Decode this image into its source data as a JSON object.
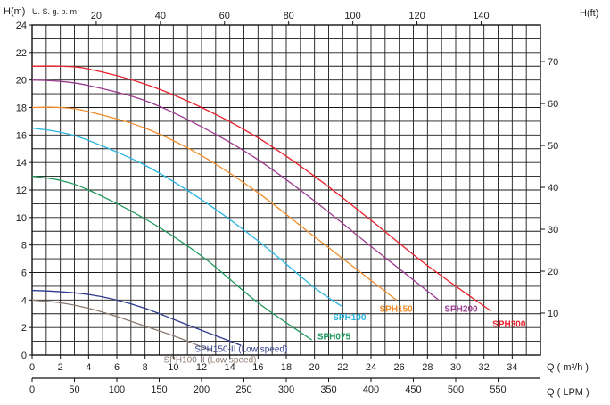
{
  "chart_data": {
    "type": "line",
    "title": "",
    "axes": {
      "left": {
        "label_main": "H(m)",
        "ticks": [
          0,
          2,
          4,
          6,
          8,
          10,
          12,
          14,
          16,
          18,
          20,
          22,
          24
        ],
        "range": [
          0,
          24
        ]
      },
      "right": {
        "label": "H(ft)",
        "ticks": [
          10,
          20,
          30,
          40,
          50,
          60,
          70
        ]
      },
      "top": {
        "label": "U. S. g. p. m",
        "ticks": [
          20,
          40,
          60,
          80,
          100,
          120,
          140
        ]
      },
      "bottom_q": {
        "label": "Q ( m³/h )",
        "ticks": [
          0,
          2,
          4,
          6,
          8,
          10,
          12,
          14,
          16,
          18,
          20,
          22,
          24,
          26,
          28,
          30,
          32,
          34
        ],
        "range": [
          0,
          36
        ]
      },
      "bottom_lpm": {
        "label": "Q ( LPM )",
        "ticks": [
          0,
          50,
          100,
          150,
          200,
          250,
          300,
          350,
          400,
          450,
          500,
          550
        ]
      }
    },
    "grid": true,
    "series": [
      {
        "name": "SPH300",
        "color": "#e8202a",
        "x": [
          0,
          2,
          4,
          8,
          12,
          16,
          20,
          24,
          28,
          32.5
        ],
        "y": [
          21.0,
          21.0,
          20.8,
          19.7,
          18.0,
          15.8,
          13.0,
          9.8,
          6.5,
          3.2
        ]
      },
      {
        "name": "SPH200",
        "color": "#9b3b8e",
        "x": [
          0,
          2,
          4,
          8,
          12,
          16,
          20,
          24,
          28.8
        ],
        "y": [
          20.0,
          19.9,
          19.6,
          18.5,
          16.6,
          14.2,
          11.2,
          7.9,
          4.0
        ]
      },
      {
        "name": "SPH150",
        "color": "#f08c2a",
        "x": [
          0,
          2,
          4,
          8,
          12,
          16,
          20,
          25.8
        ],
        "y": [
          18.0,
          18.0,
          17.7,
          16.5,
          14.5,
          11.8,
          8.6,
          4.0
        ]
      },
      {
        "name": "SPH100",
        "color": "#2ab4e0",
        "x": [
          0,
          2,
          4,
          8,
          12,
          16,
          20,
          22.0
        ],
        "y": [
          16.5,
          16.2,
          15.6,
          13.8,
          11.3,
          8.3,
          4.9,
          3.5
        ]
      },
      {
        "name": "SPH075",
        "color": "#1e9a5c",
        "x": [
          0,
          2,
          4,
          8,
          12,
          16,
          19.8
        ],
        "y": [
          13.0,
          12.7,
          12.0,
          9.9,
          7.2,
          3.8,
          1.1
        ]
      },
      {
        "name": "SPH150-II (Low speed)",
        "color": "#2d3a8c",
        "x": [
          0,
          2,
          4,
          6,
          8,
          10,
          12,
          14.8
        ],
        "y": [
          4.7,
          4.6,
          4.4,
          4.0,
          3.4,
          2.6,
          1.8,
          0.7
        ]
      },
      {
        "name": "SPH100-II (Low speed)",
        "color": "#8a7a72",
        "x": [
          0,
          2,
          4,
          6,
          8,
          10,
          12,
          13.0
        ],
        "y": [
          4.0,
          3.8,
          3.4,
          2.8,
          2.1,
          1.4,
          0.6,
          0.2
        ]
      }
    ],
    "labels": [
      {
        "text": "SPH300",
        "color": "#e8202a",
        "x": 32.6,
        "y": 2.3
      },
      {
        "text": "SPH200",
        "color": "#9b3b8e",
        "x": 29.2,
        "y": 3.4
      },
      {
        "text": "SPH150",
        "color": "#f08c2a",
        "x": 24.6,
        "y": 3.4
      },
      {
        "text": "SPH100",
        "color": "#2ab4e0",
        "x": 21.3,
        "y": 2.8
      },
      {
        "text": "SPH075",
        "color": "#1e9a5c",
        "x": 20.2,
        "y": 1.4
      },
      {
        "text": "SPH150-II (Low speed)",
        "color": "#2d3a8c",
        "x": 14.8,
        "y": 0.5
      },
      {
        "text": "SPH100-II (Low speed)",
        "color": "#8a7a72",
        "x": 12.6,
        "y": -0.3
      }
    ]
  }
}
